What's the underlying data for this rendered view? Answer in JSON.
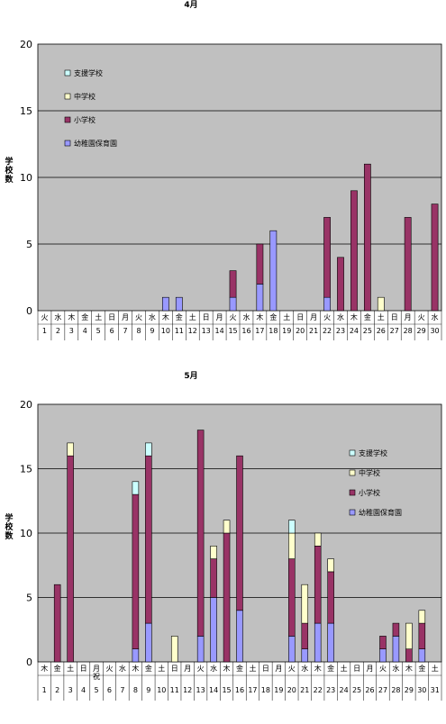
{
  "chart_data": [
    {
      "type": "bar",
      "stacked": true,
      "title": "4月",
      "ylabel": "学校数",
      "ylim": [
        0,
        20
      ],
      "yticks": [
        0,
        5,
        10,
        15,
        20
      ],
      "grid": true,
      "legend_position": "top-left",
      "categories": [
        "1",
        "2",
        "3",
        "4",
        "5",
        "6",
        "7",
        "8",
        "9",
        "10",
        "11",
        "12",
        "13",
        "14",
        "15",
        "16",
        "17",
        "18",
        "19",
        "20",
        "21",
        "22",
        "23",
        "24",
        "25",
        "26",
        "27",
        "28",
        "29",
        "30"
      ],
      "weekdays": [
        "火",
        "水",
        "木",
        "金",
        "土",
        "日",
        "月",
        "火",
        "水",
        "木",
        "金",
        "土",
        "日",
        "月",
        "火",
        "水",
        "木",
        "金",
        "土",
        "日",
        "月",
        "火",
        "水",
        "木",
        "金",
        "土",
        "日",
        "月",
        "火",
        "水"
      ],
      "series": [
        {
          "name": "幼稚園保育園",
          "color": "#9999ff",
          "values": [
            0,
            0,
            0,
            0,
            0,
            0,
            0,
            0,
            0,
            1,
            1,
            0,
            0,
            0,
            1,
            0,
            2,
            6,
            0,
            0,
            0,
            1,
            0,
            0,
            0,
            0,
            0,
            0,
            0,
            0
          ]
        },
        {
          "name": "小学校",
          "color": "#993366",
          "values": [
            0,
            0,
            0,
            0,
            0,
            0,
            0,
            0,
            0,
            0,
            0,
            0,
            0,
            0,
            2,
            0,
            3,
            0,
            0,
            0,
            0,
            6,
            4,
            9,
            11,
            0,
            0,
            7,
            0,
            8
          ]
        },
        {
          "name": "中学校",
          "color": "#ffffcc",
          "values": [
            0,
            0,
            0,
            0,
            0,
            0,
            0,
            0,
            0,
            0,
            0,
            0,
            0,
            0,
            0,
            0,
            0,
            0,
            0,
            0,
            0,
            0,
            0,
            0,
            0,
            1,
            0,
            0,
            0,
            0
          ]
        },
        {
          "name": "支援学校",
          "color": "#ccffff",
          "values": [
            0,
            0,
            0,
            0,
            0,
            0,
            0,
            0,
            0,
            0,
            0,
            0,
            0,
            0,
            0,
            0,
            0,
            0,
            0,
            0,
            0,
            0,
            0,
            0,
            0,
            0,
            0,
            0,
            0,
            0
          ]
        }
      ],
      "legend_order": [
        "支援学校",
        "中学校",
        "小学校",
        "幼稚園保育園"
      ]
    },
    {
      "type": "bar",
      "stacked": true,
      "title": "5月",
      "ylabel": "学校数",
      "ylim": [
        0,
        20
      ],
      "yticks": [
        0,
        5,
        10,
        15,
        20
      ],
      "grid": true,
      "legend_position": "right",
      "categories": [
        "1",
        "2",
        "3",
        "4",
        "5",
        "6",
        "7",
        "8",
        "9",
        "10",
        "11",
        "12",
        "13",
        "14",
        "15",
        "16",
        "17",
        "18",
        "19",
        "20",
        "21",
        "22",
        "23",
        "24",
        "25",
        "26",
        "27",
        "28",
        "29",
        "30",
        "31"
      ],
      "weekdays": [
        "木",
        "金",
        "土",
        "日",
        "月祝",
        "火",
        "水",
        "木",
        "金",
        "土",
        "日",
        "月",
        "火",
        "水",
        "木",
        "金",
        "土",
        "日",
        "月",
        "火",
        "水",
        "木",
        "金",
        "土",
        "日",
        "月",
        "火",
        "水",
        "木",
        "金",
        "土"
      ],
      "series": [
        {
          "name": "幼稚園保育園",
          "color": "#9999ff",
          "values": [
            0,
            0,
            0,
            0,
            0,
            0,
            0,
            1,
            3,
            0,
            0,
            0,
            2,
            5,
            0,
            4,
            0,
            0,
            0,
            2,
            1,
            3,
            3,
            0,
            0,
            0,
            1,
            2,
            0,
            1,
            0
          ]
        },
        {
          "name": "小学校",
          "color": "#993366",
          "values": [
            0,
            6,
            16,
            0,
            0,
            0,
            0,
            12,
            13,
            0,
            0,
            0,
            16,
            3,
            10,
            12,
            0,
            0,
            0,
            6,
            2,
            6,
            4,
            0,
            0,
            0,
            1,
            1,
            1,
            2,
            0
          ]
        },
        {
          "name": "中学校",
          "color": "#ffffcc",
          "values": [
            0,
            0,
            1,
            0,
            0,
            0,
            0,
            0,
            0,
            0,
            2,
            0,
            0,
            1,
            1,
            0,
            0,
            0,
            0,
            2,
            3,
            1,
            1,
            0,
            0,
            0,
            0,
            0,
            2,
            1,
            0
          ]
        },
        {
          "name": "支援学校",
          "color": "#ccffff",
          "values": [
            0,
            0,
            0,
            0,
            0,
            0,
            0,
            1,
            1,
            0,
            0,
            0,
            0,
            0,
            0,
            0,
            0,
            0,
            0,
            1,
            0,
            0,
            0,
            0,
            0,
            0,
            0,
            0,
            0,
            0,
            0
          ]
        }
      ],
      "legend_order": [
        "支援学校",
        "中学校",
        "小学校",
        "幼稚園保育園"
      ]
    }
  ]
}
